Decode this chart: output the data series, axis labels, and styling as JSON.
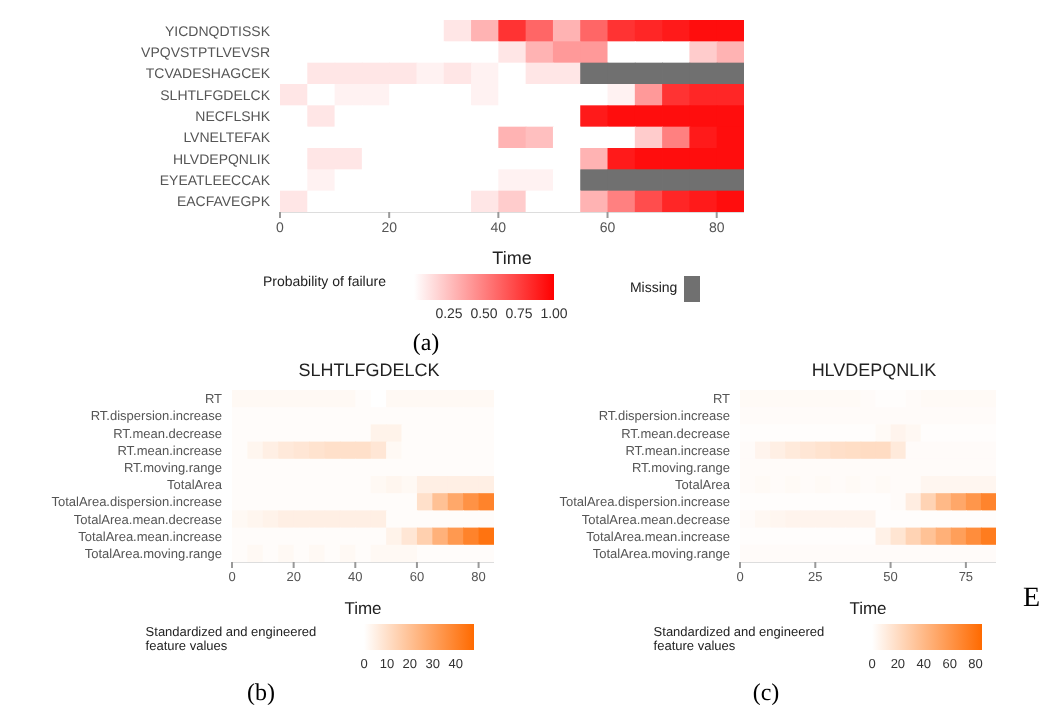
{
  "chart_data": [
    {
      "type": "heatmap",
      "xlabel": "Time",
      "x": [
        2.5,
        7.5,
        12.5,
        17.5,
        22.5,
        27.5,
        32.5,
        37.5,
        42.5,
        47.5,
        52.5,
        57.5,
        62.5,
        67.5,
        72.5,
        77.5,
        82.5
      ],
      "xlim": [
        0,
        85
      ],
      "xticks": [
        0,
        20,
        40,
        60,
        80
      ],
      "y_categories": [
        "YICDNQDTISSK",
        "VPQVSTPTLVEVSR",
        "TCVADESHAGCEK",
        "SLHTLFGDELCK",
        "NECFLSHK",
        "LVNELTEFAK",
        "HLVDEPQNLIK",
        "EYEATLEECCAK",
        "EACFAVEGPK"
      ],
      "cells": [
        [
          0,
          0,
          0,
          0,
          0,
          0,
          0.1,
          0.3,
          0.8,
          0.6,
          0.3,
          0.6,
          0.8,
          0.85,
          0.9,
          0.95,
          0.95
        ],
        [
          0,
          0,
          0,
          0,
          0,
          0,
          0,
          0,
          0.1,
          0.3,
          0.4,
          0.4,
          0,
          0,
          0,
          0.2,
          0.3
        ],
        [
          0,
          0.1,
          0.1,
          0.1,
          0.1,
          0.05,
          0.1,
          0.05,
          0,
          0.1,
          0.1,
          null,
          null,
          null,
          null,
          null,
          null
        ],
        [
          0.1,
          0,
          0.05,
          0.05,
          0,
          0,
          0,
          0.05,
          0,
          0,
          0,
          0,
          0.05,
          0.4,
          0.8,
          0.85,
          0.85
        ],
        [
          0,
          0.1,
          0,
          0,
          0,
          0,
          0,
          0,
          0,
          0,
          0,
          0.9,
          0.95,
          0.95,
          0.95,
          0.95,
          0.95
        ],
        [
          0,
          0,
          0,
          0,
          0,
          0,
          0,
          0,
          0.3,
          0.25,
          0,
          0,
          0,
          0.2,
          0.5,
          0.9,
          0.95
        ],
        [
          0,
          0.1,
          0.1,
          0,
          0,
          0,
          0,
          0,
          0,
          0,
          0,
          0.3,
          0.9,
          0.95,
          0.95,
          0.95,
          0.95
        ],
        [
          0,
          0.05,
          0,
          0,
          0,
          0,
          0,
          0,
          0.05,
          0.05,
          0,
          null,
          null,
          null,
          null,
          null,
          null
        ],
        [
          0.1,
          0,
          0,
          0,
          0,
          0,
          0,
          0.1,
          0.2,
          0,
          0,
          0.3,
          0.5,
          0.7,
          0.85,
          0.9,
          0.95
        ]
      ],
      "color": "#ff0000",
      "clim": [
        0,
        1
      ],
      "cticks": [
        {
          "value": 0.25,
          "label": "0.25"
        },
        {
          "value": 0.5,
          "label": "0.50"
        },
        {
          "value": 0.75,
          "label": "0.75"
        },
        {
          "value": 1,
          "label": "1.00"
        }
      ],
      "clabel": "Probability of failure",
      "legend_title": "Missing",
      "annotations": [
        "(a)"
      ]
    },
    {
      "type": "heatmap",
      "title": "SLHTLFGDELCK",
      "xlabel": "Time",
      "x": [
        2.5,
        7.5,
        12.5,
        17.5,
        22.5,
        27.5,
        32.5,
        37.5,
        42.5,
        47.5,
        52.5,
        57.5,
        62.5,
        67.5,
        72.5,
        77.5,
        82.5
      ],
      "xlim": [
        0,
        85
      ],
      "xticks": [
        0,
        20,
        40,
        60,
        80
      ],
      "y_categories": [
        "RT",
        "RT.dispersion.increase",
        "RT.mean.decrease",
        "RT.mean.increase",
        "RT.moving.range",
        "TotalArea",
        "TotalArea.dispersion.increase",
        "TotalArea.mean.decrease",
        "TotalArea.mean.increase",
        "TotalArea.moving.range"
      ],
      "cells": [
        [
          2,
          2,
          2,
          2,
          2,
          2,
          2,
          2,
          1,
          0,
          2,
          2,
          2,
          2,
          2,
          2,
          2
        ],
        [
          1,
          1,
          1,
          1,
          1,
          1,
          1,
          1,
          1,
          1,
          1,
          1,
          1,
          1,
          1,
          1,
          1
        ],
        [
          1,
          1,
          1,
          1,
          1,
          1,
          1,
          1,
          1,
          4,
          4,
          1,
          1,
          1,
          1,
          1,
          1
        ],
        [
          1,
          3,
          5,
          7,
          8,
          9,
          10,
          10,
          10,
          8,
          2,
          1,
          1,
          1,
          1,
          1,
          1
        ],
        [
          1,
          1,
          1,
          1,
          1,
          1,
          1,
          1,
          1,
          1,
          1,
          1,
          1,
          1,
          1,
          1,
          1
        ],
        [
          1,
          1,
          1,
          1,
          1,
          1,
          1,
          1,
          1,
          2,
          3,
          2,
          5,
          5,
          5,
          5,
          5
        ],
        [
          1,
          1,
          1,
          1,
          1,
          1,
          1,
          1,
          1,
          1,
          1,
          1,
          10,
          20,
          28,
          35,
          40
        ],
        [
          2,
          3,
          4,
          5,
          5,
          5,
          5,
          5,
          5,
          5,
          1,
          1,
          1,
          1,
          1,
          1,
          1
        ],
        [
          1,
          1,
          1,
          1,
          1,
          1,
          1,
          1,
          1,
          1,
          4,
          8,
          15,
          25,
          33,
          40,
          45
        ],
        [
          1,
          2,
          1,
          2,
          1,
          2,
          1,
          2,
          1,
          2,
          2,
          2,
          1,
          1,
          1,
          1,
          1
        ]
      ],
      "color": "#ff6a00",
      "clim": [
        0,
        48
      ],
      "cticks": [
        0,
        10,
        20,
        30,
        40
      ],
      "clabel": "Standardized and engineered feature values",
      "annotations": [
        "(b)"
      ]
    },
    {
      "type": "heatmap",
      "title": "HLVDEPQNLIK",
      "xlabel": "Time",
      "x": [
        2.5,
        7.5,
        12.5,
        17.5,
        22.5,
        27.5,
        32.5,
        37.5,
        42.5,
        47.5,
        52.5,
        57.5,
        62.5,
        67.5,
        72.5,
        77.5,
        82.5
      ],
      "xlim": [
        0,
        85
      ],
      "xticks": [
        0,
        25,
        50,
        75
      ],
      "y_categories": [
        "RT",
        "RT.dispersion.increase",
        "RT.mean.decrease",
        "RT.mean.increase",
        "RT.moving.range",
        "TotalArea",
        "TotalArea.dispersion.increase",
        "TotalArea.mean.decrease",
        "TotalArea.mean.increase",
        "TotalArea.moving.range"
      ],
      "cells": [
        [
          3,
          3,
          3,
          3,
          3,
          3,
          3,
          3,
          2,
          1,
          1,
          2,
          3,
          3,
          3,
          3,
          3
        ],
        [
          2,
          2,
          2,
          2,
          2,
          2,
          2,
          2,
          2,
          2,
          2,
          2,
          2,
          2,
          2,
          2,
          2
        ],
        [
          1,
          1,
          1,
          1,
          1,
          1,
          1,
          1,
          1,
          3,
          6,
          4,
          1,
          1,
          1,
          1,
          1
        ],
        [
          2,
          6,
          9,
          12,
          14,
          16,
          18,
          19,
          20,
          20,
          12,
          2,
          2,
          2,
          2,
          2,
          2
        ],
        [
          2,
          2,
          2,
          2,
          2,
          2,
          2,
          2,
          2,
          2,
          2,
          2,
          2,
          2,
          2,
          2,
          2
        ],
        [
          2,
          3,
          2,
          3,
          2,
          3,
          2,
          3,
          2,
          3,
          2,
          2,
          5,
          5,
          5,
          5,
          5
        ],
        [
          1,
          1,
          1,
          1,
          1,
          1,
          1,
          1,
          1,
          1,
          2,
          10,
          25,
          40,
          50,
          60,
          70
        ],
        [
          2,
          4,
          5,
          6,
          6,
          6,
          6,
          6,
          6,
          1,
          1,
          1,
          1,
          1,
          1,
          1,
          1
        ],
        [
          1,
          1,
          1,
          1,
          1,
          1,
          1,
          1,
          1,
          8,
          15,
          25,
          35,
          45,
          55,
          65,
          75
        ],
        [
          2,
          2,
          2,
          2,
          2,
          2,
          2,
          2,
          2,
          2,
          2,
          2,
          2,
          2,
          2,
          2,
          2
        ]
      ],
      "color": "#ff6a00",
      "clim": [
        0,
        85
      ],
      "cticks": [
        0,
        20,
        40,
        60,
        80
      ],
      "clabel": "Standardized and engineered feature values",
      "annotations": [
        "(c)",
        "E"
      ]
    }
  ]
}
